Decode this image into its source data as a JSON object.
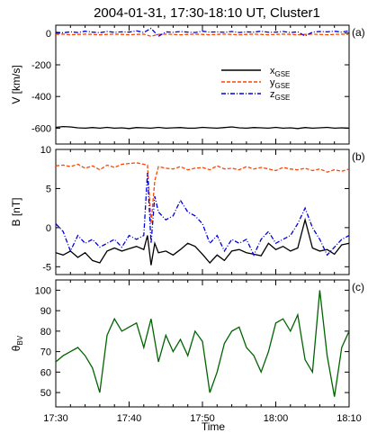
{
  "figure_title": "2004-01-31, 17:30-18:10 UT, Cluster1",
  "x_axis_label": "Time",
  "x_tick_labels": [
    "17:30",
    "17:40",
    "17:50",
    "18:00",
    "18:10"
  ],
  "chart_data": [
    {
      "type": "line",
      "panel_tag": "(a)",
      "ylabel": "V [km/s]",
      "xlim": [
        0,
        40
      ],
      "ylim": [
        -700,
        50
      ],
      "yticks": [
        0,
        -200,
        -400,
        -600
      ],
      "legend_position": "right",
      "x_minutes_after_1730": [
        0,
        1,
        2,
        3,
        4,
        5,
        6,
        7,
        8,
        9,
        10,
        11,
        12,
        13,
        14,
        15,
        16,
        17,
        18,
        19,
        20,
        21,
        22,
        23,
        24,
        25,
        26,
        27,
        28,
        29,
        30,
        31,
        32,
        33,
        34,
        35,
        36,
        37,
        38,
        39,
        40
      ],
      "series": [
        {
          "name": "x",
          "subscript": "GSE",
          "color": "#000000",
          "dash": "solid",
          "values": [
            -595,
            -590,
            -592,
            -598,
            -600,
            -596,
            -600,
            -595,
            -600,
            -598,
            -602,
            -596,
            -598,
            -600,
            -595,
            -600,
            -598,
            -596,
            -600,
            -600,
            -595,
            -598,
            -600,
            -596,
            -592,
            -598,
            -600,
            -596,
            -598,
            -600,
            -595,
            -600,
            -598,
            -602,
            -596,
            -600,
            -598,
            -595,
            -600,
            -598,
            -600
          ]
        },
        {
          "name": "y",
          "subscript": "GSE",
          "color": "#ff4500",
          "dash": "dashed",
          "values": [
            -8,
            -6,
            -10,
            -8,
            -6,
            -8,
            -10,
            -8,
            -6,
            -8,
            -10,
            -8,
            -6,
            -20,
            -8,
            -6,
            -8,
            -10,
            -8,
            -6,
            -8,
            -10,
            -8,
            -6,
            -8,
            -10,
            -8,
            -6,
            -8,
            -10,
            -8,
            -6,
            -8,
            -10,
            -8,
            -6,
            -8,
            -10,
            -8,
            -6,
            -8
          ]
        },
        {
          "name": "z",
          "subscript": "GSE",
          "color": "#0000dd",
          "dash": "dashdot",
          "values": [
            5,
            2,
            8,
            4,
            12,
            6,
            3,
            10,
            5,
            8,
            6,
            14,
            4,
            30,
            -20,
            8,
            5,
            10,
            6,
            4,
            12,
            6,
            8,
            5,
            10,
            4,
            8,
            6,
            12,
            5,
            6,
            10,
            4,
            8,
            -18,
            6,
            10,
            8,
            12,
            6,
            15
          ]
        }
      ]
    },
    {
      "type": "line",
      "panel_tag": "(b)",
      "ylabel": "B [nT]",
      "xlim": [
        0,
        40
      ],
      "ylim": [
        -6,
        10
      ],
      "yticks": [
        10,
        5,
        0,
        -5
      ],
      "x_minutes_after_1730": [
        0,
        1,
        2,
        3,
        4,
        5,
        6,
        7,
        8,
        9,
        10,
        11,
        12,
        12.5,
        13,
        13.5,
        14,
        15,
        16,
        17,
        18,
        19,
        20,
        21,
        22,
        23,
        24,
        25,
        26,
        27,
        28,
        29,
        30,
        31,
        32,
        33,
        34,
        35,
        36,
        37,
        38,
        39,
        40
      ],
      "series": [
        {
          "name": "x",
          "color": "#000000",
          "dash": "solid",
          "values": [
            -3.2,
            -3.5,
            -3.0,
            -3.8,
            -3.2,
            -4.2,
            -4.5,
            -3.0,
            -2.6,
            -3.0,
            -2.7,
            -2.4,
            -2.8,
            -1.0,
            -4.8,
            -2.0,
            -3.2,
            -3.0,
            -3.5,
            -2.8,
            -2.0,
            -2.4,
            -3.4,
            -4.5,
            -3.5,
            -4.2,
            -3.0,
            -2.8,
            -3.2,
            -3.4,
            -3.6,
            -2.0,
            -2.8,
            -2.4,
            -3.0,
            -2.6,
            1.0,
            -2.6,
            -3.0,
            -2.8,
            -3.4,
            -2.2,
            -2.0
          ]
        },
        {
          "name": "y",
          "color": "#ff4500",
          "dash": "dashed",
          "values": [
            7.9,
            8.0,
            7.8,
            8.1,
            7.6,
            7.9,
            7.4,
            8.0,
            7.7,
            8.1,
            8.2,
            8.3,
            8.1,
            8.0,
            0.5,
            6.0,
            7.8,
            7.6,
            7.5,
            7.8,
            7.4,
            7.6,
            7.7,
            7.4,
            7.9,
            7.5,
            7.6,
            7.4,
            7.8,
            7.5,
            7.7,
            7.5,
            7.3,
            7.7,
            7.5,
            7.4,
            7.6,
            7.3,
            7.5,
            7.1,
            7.4,
            7.2,
            7.5
          ]
        },
        {
          "name": "z",
          "color": "#0000dd",
          "dash": "dashdot",
          "values": [
            0.5,
            -0.5,
            -3.0,
            -1.0,
            -2.0,
            -1.5,
            -2.5,
            -2.0,
            -1.5,
            -2.5,
            -1.0,
            -1.5,
            -1.0,
            7.0,
            -2.0,
            4.0,
            2.0,
            1.0,
            1.5,
            3.5,
            2.0,
            1.5,
            0.5,
            -2.0,
            -1.0,
            -3.0,
            -1.5,
            -2.0,
            -1.5,
            -3.5,
            -1.5,
            -0.5,
            -2.0,
            -1.5,
            -1.0,
            0.5,
            2.5,
            0.0,
            -1.5,
            -3.5,
            -2.5,
            -1.5,
            -1.0
          ]
        }
      ]
    },
    {
      "type": "line",
      "panel_tag": "(c)",
      "ylabel": "θ",
      "ylabel_subscript": "BV",
      "xlim": [
        0,
        40
      ],
      "ylim": [
        43,
        105
      ],
      "yticks": [
        100,
        90,
        80,
        70,
        60,
        50
      ],
      "x_minutes_after_1730": [
        0,
        1,
        2,
        3,
        4,
        5,
        6,
        7,
        8,
        9,
        10,
        11,
        12,
        13,
        14,
        15,
        16,
        17,
        18,
        19,
        20,
        21,
        22,
        23,
        24,
        25,
        26,
        27,
        28,
        29,
        30,
        31,
        32,
        33,
        34,
        35,
        36,
        37,
        38,
        39,
        40
      ],
      "series": [
        {
          "name": "theta_BV",
          "color": "#006400",
          "dash": "solid",
          "values": [
            65,
            68,
            70,
            72,
            68,
            62,
            50,
            78,
            86,
            80,
            82,
            84,
            72,
            86,
            65,
            78,
            70,
            76,
            68,
            80,
            75,
            50,
            60,
            74,
            80,
            82,
            72,
            68,
            60,
            70,
            84,
            86,
            80,
            88,
            66,
            60,
            100,
            68,
            48,
            72,
            80
          ]
        }
      ]
    }
  ]
}
